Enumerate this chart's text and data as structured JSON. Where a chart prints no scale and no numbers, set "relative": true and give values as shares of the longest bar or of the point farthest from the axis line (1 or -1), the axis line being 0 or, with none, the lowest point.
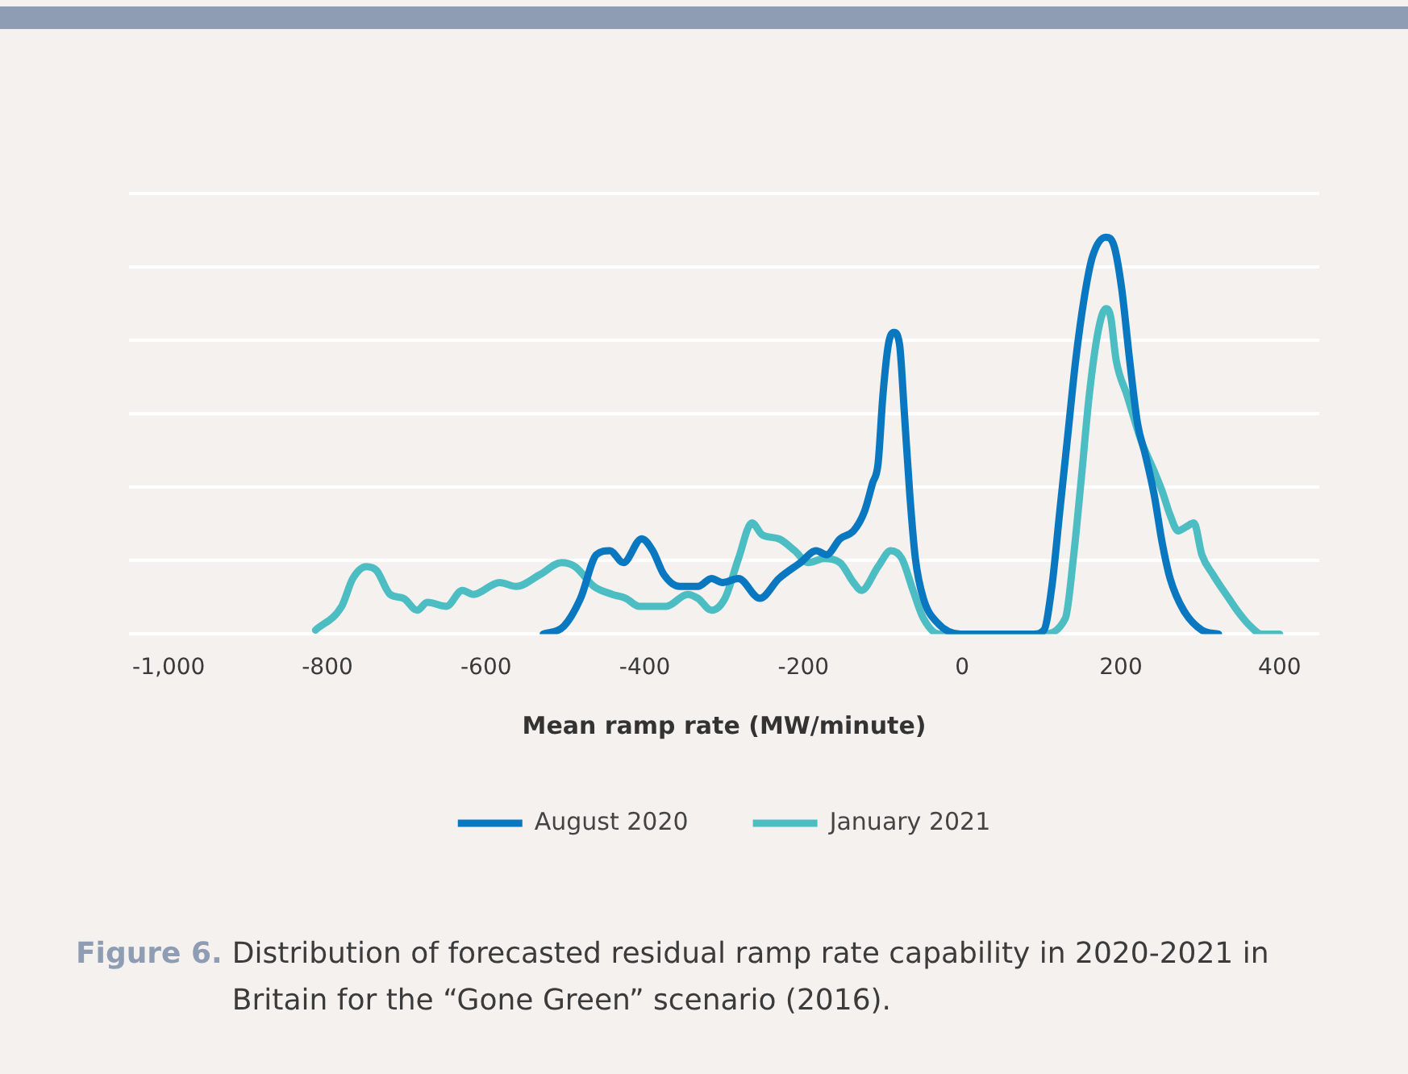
{
  "chart_data": {
    "type": "line",
    "relative": true,
    "xlabel": "Mean ramp rate (MW/minute)",
    "xlim": [
      -1050,
      450
    ],
    "xticks": [
      {
        "value": -1000,
        "label": "-1,000"
      },
      -800,
      -600,
      -400,
      -200,
      0,
      200,
      400
    ],
    "grid": "y",
    "legend": "bottom",
    "series": [
      {
        "name": "August 2020",
        "color": "#0a78c0",
        "x": [
          -528,
          -502,
          -481,
          -461,
          -444,
          -427,
          -404,
          -390,
          -376,
          -356,
          -333,
          -316,
          -302,
          -282,
          -255,
          -231,
          -204,
          -184,
          -171,
          -154,
          -137,
          -123,
          -113,
          -106,
          -100,
          -93,
          -86,
          -79,
          -73,
          -66,
          -59,
          -49,
          -32,
          -2,
          40,
          90,
          103,
          113,
          123,
          133,
          143,
          154,
          164,
          181,
          191,
          201,
          211,
          221,
          231,
          242,
          252,
          262,
          279,
          302,
          323
        ],
        "values": [
          0,
          0.02,
          0.09,
          0.2,
          0.21,
          0.18,
          0.24,
          0.21,
          0.15,
          0.12,
          0.12,
          0.14,
          0.13,
          0.14,
          0.09,
          0.14,
          0.18,
          0.21,
          0.2,
          0.24,
          0.26,
          0.31,
          0.38,
          0.43,
          0.6,
          0.73,
          0.76,
          0.73,
          0.56,
          0.35,
          0.19,
          0.09,
          0.03,
          0,
          0,
          0,
          0.01,
          0.12,
          0.31,
          0.5,
          0.69,
          0.85,
          0.95,
          1,
          0.98,
          0.87,
          0.69,
          0.53,
          0.45,
          0.35,
          0.23,
          0.14,
          0.06,
          0.01,
          0
        ]
      },
      {
        "name": "January 2021",
        "color": "#4cbdc2",
        "x": [
          -815,
          -782,
          -768,
          -751,
          -738,
          -721,
          -704,
          -687,
          -674,
          -650,
          -630,
          -616,
          -583,
          -562,
          -532,
          -505,
          -488,
          -464,
          -441,
          -424,
          -407,
          -373,
          -346,
          -333,
          -316,
          -299,
          -282,
          -265,
          -252,
          -231,
          -211,
          -194,
          -174,
          -154,
          -137,
          -127,
          -106,
          -90,
          -76,
          -62,
          -49,
          -29,
          100,
          130,
          140,
          150,
          160,
          171,
          181,
          187,
          194,
          208,
          225,
          242,
          252,
          262,
          272,
          282,
          292,
          302,
          316,
          336,
          350,
          363,
          377,
          400
        ],
        "values": [
          0.01,
          0.07,
          0.14,
          0.17,
          0.16,
          0.1,
          0.09,
          0.06,
          0.08,
          0.07,
          0.11,
          0.1,
          0.13,
          0.12,
          0.15,
          0.18,
          0.17,
          0.12,
          0.1,
          0.09,
          0.07,
          0.07,
          0.1,
          0.09,
          0.06,
          0.09,
          0.19,
          0.28,
          0.25,
          0.24,
          0.21,
          0.18,
          0.19,
          0.18,
          0.13,
          0.11,
          0.17,
          0.21,
          0.19,
          0.11,
          0.04,
          0,
          0,
          0.04,
          0.19,
          0.39,
          0.6,
          0.76,
          0.82,
          0.8,
          0.69,
          0.6,
          0.49,
          0.41,
          0.36,
          0.3,
          0.26,
          0.27,
          0.28,
          0.2,
          0.15,
          0.09,
          0.05,
          0.02,
          0,
          0
        ]
      }
    ],
    "annotations": [
      "Figure 6.",
      "Distribution of forecasted residual ramp rate capability in 2020-2021 in Britain for the “Gone Green” scenario (2016)."
    ]
  }
}
